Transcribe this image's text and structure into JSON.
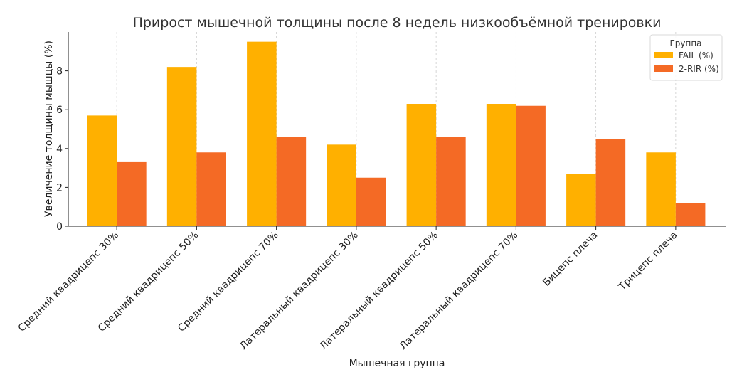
{
  "chart_data": {
    "type": "bar",
    "title": "Прирост мышечной толщины после 8 недель низкообъёмной тренировки",
    "xlabel": "Мышечная группа",
    "ylabel": "Увеличение толщины мышцы (%)",
    "categories": [
      "Средний квадрицепс 30%",
      "Средний квадрицепс 50%",
      "Средний квадрицепс 70%",
      "Латеральный квадрицепс 30%",
      "Латеральный квадрицепс 50%",
      "Латеральный квадрицепс 70%",
      "Бицепс плеча",
      "Трицепс плеча"
    ],
    "series": [
      {
        "name": "FAIL (%)",
        "color": "#FFB000",
        "values": [
          5.7,
          8.2,
          9.5,
          4.2,
          6.3,
          6.3,
          2.7,
          3.8
        ]
      },
      {
        "name": "2-RIR (%)",
        "color": "#F46A25",
        "values": [
          3.3,
          3.8,
          4.6,
          2.5,
          4.6,
          6.2,
          4.5,
          1.2
        ]
      }
    ],
    "ylim": [
      0,
      10
    ],
    "yticks": [
      "0",
      "2",
      "4",
      "6",
      "8"
    ],
    "grid": "vertical dashed",
    "legend": {
      "title": "Группа",
      "position": "top-right"
    }
  }
}
